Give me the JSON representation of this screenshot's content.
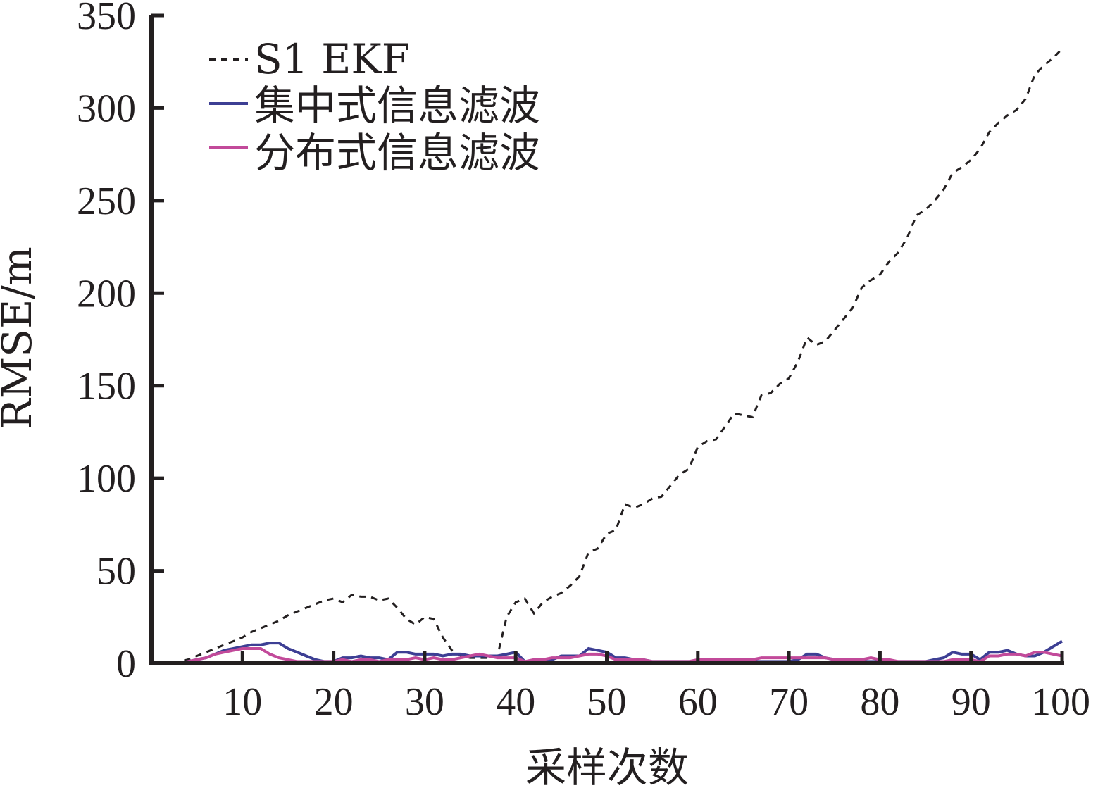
{
  "chart_data": {
    "type": "line",
    "xlabel": "采样次数",
    "ylabel": "RMSE/m",
    "xlim": [
      0,
      100
    ],
    "ylim": [
      0,
      350
    ],
    "xticks": [
      10,
      20,
      30,
      40,
      50,
      60,
      70,
      80,
      90,
      100
    ],
    "yticks": [
      0,
      50,
      100,
      150,
      200,
      250,
      300,
      350
    ],
    "grid": false,
    "legend_position": "top-left",
    "x": [
      1,
      2,
      3,
      4,
      5,
      6,
      7,
      8,
      9,
      10,
      11,
      12,
      13,
      14,
      15,
      16,
      17,
      18,
      19,
      20,
      21,
      22,
      23,
      24,
      25,
      26,
      27,
      28,
      29,
      30,
      31,
      32,
      33,
      34,
      35,
      36,
      37,
      38,
      39,
      40,
      41,
      42,
      43,
      44,
      45,
      46,
      47,
      48,
      49,
      50,
      51,
      52,
      53,
      54,
      55,
      56,
      57,
      58,
      59,
      60,
      61,
      62,
      63,
      64,
      65,
      66,
      67,
      68,
      69,
      70,
      71,
      72,
      73,
      74,
      75,
      76,
      77,
      78,
      79,
      80,
      81,
      82,
      83,
      84,
      85,
      86,
      87,
      88,
      89,
      90,
      91,
      92,
      93,
      94,
      95,
      96,
      97,
      98,
      99,
      100
    ],
    "series": [
      {
        "name": "S1 EKF",
        "color": "#231f20",
        "dash": "dashed",
        "values": [
          0,
          0,
          1,
          2,
          4,
          6,
          8,
          10,
          12,
          14,
          17,
          19,
          21,
          23,
          26,
          28,
          30,
          32,
          34,
          35,
          33,
          37,
          36,
          36,
          34,
          35,
          30,
          24,
          21,
          25,
          24,
          14,
          7,
          4,
          3,
          3,
          3,
          4,
          25,
          33,
          35,
          27,
          33,
          36,
          38,
          42,
          47,
          60,
          62,
          70,
          72,
          86,
          84,
          86,
          89,
          90,
          96,
          102,
          105,
          117,
          120,
          121,
          128,
          135,
          134,
          133,
          145,
          146,
          151,
          154,
          163,
          176,
          172,
          174,
          180,
          186,
          192,
          203,
          207,
          210,
          217,
          222,
          230,
          242,
          245,
          250,
          256,
          265,
          268,
          272,
          278,
          287,
          292,
          296,
          299,
          305,
          318,
          323,
          327,
          332
        ]
      },
      {
        "name": "集中式信息滤波",
        "color": "#3d3f94",
        "dash": "solid",
        "values": [
          0,
          0,
          0,
          1,
          2,
          3,
          5,
          7,
          8,
          9,
          10,
          10,
          11,
          11,
          8,
          6,
          4,
          2,
          1,
          1,
          3,
          3,
          4,
          3,
          3,
          2,
          6,
          6,
          5,
          5,
          5,
          4,
          5,
          5,
          4,
          4,
          4,
          4,
          5,
          6,
          1,
          1,
          1,
          2,
          4,
          4,
          4,
          8,
          7,
          6,
          3,
          3,
          2,
          2,
          1,
          1,
          1,
          1,
          1,
          1,
          1,
          1,
          1,
          1,
          1,
          1,
          1,
          1,
          1,
          1,
          2,
          5,
          5,
          3,
          2,
          2,
          1,
          1,
          1,
          1,
          1,
          1,
          1,
          1,
          1,
          2,
          3,
          6,
          5,
          5,
          2,
          6,
          6,
          7,
          5,
          4,
          4,
          6,
          9,
          12
        ]
      },
      {
        "name": "分布式信息滤波",
        "color": "#c24a9a",
        "dash": "solid",
        "values": [
          0,
          0,
          0,
          1,
          2,
          3,
          5,
          6,
          7,
          8,
          8,
          8,
          5,
          3,
          2,
          1,
          1,
          1,
          1,
          1,
          2,
          1,
          2,
          2,
          1,
          2,
          2,
          2,
          3,
          2,
          3,
          2,
          2,
          3,
          4,
          5,
          4,
          3,
          3,
          3,
          1,
          2,
          2,
          3,
          3,
          3,
          4,
          5,
          5,
          4,
          2,
          2,
          2,
          2,
          1,
          1,
          1,
          1,
          1,
          2,
          2,
          2,
          2,
          2,
          2,
          2,
          3,
          3,
          3,
          3,
          3,
          3,
          3,
          3,
          2,
          2,
          2,
          2,
          3,
          2,
          2,
          1,
          1,
          1,
          1,
          1,
          1,
          2,
          2,
          2,
          1,
          4,
          4,
          5,
          5,
          4,
          6,
          6,
          5,
          4
        ]
      }
    ]
  }
}
